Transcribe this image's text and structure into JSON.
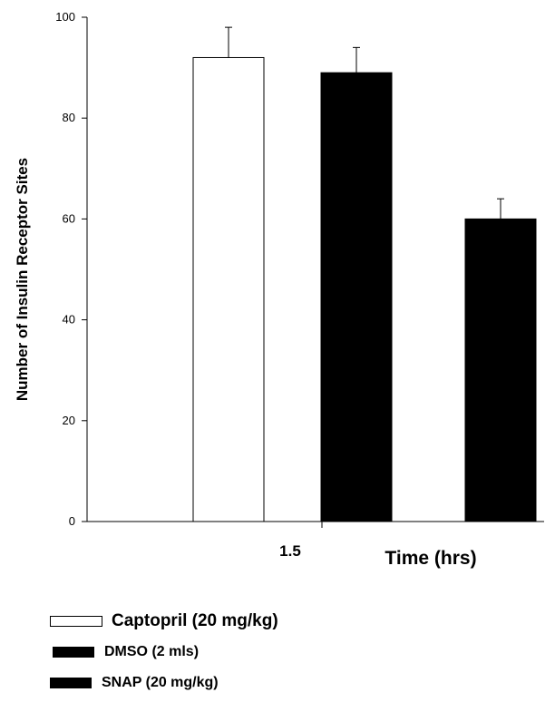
{
  "chart_data": {
    "type": "bar",
    "xlabel": "Time (hrs)",
    "ylabel": "Number of Insulin Receptor Sites",
    "ylim": [
      0,
      100
    ],
    "yticks": [
      0,
      20,
      40,
      60,
      80,
      100
    ],
    "categories": [
      "1.5"
    ],
    "grid": false,
    "legend_position": "bottom",
    "series": [
      {
        "name": "Captopril (20 mg/kg)",
        "fill": "#ffffff",
        "values": [
          92
        ],
        "errors": [
          6
        ]
      },
      {
        "name": "DMSO (2 mls)",
        "fill": "#000000",
        "values": [
          89
        ],
        "errors": [
          5
        ]
      },
      {
        "name": "SNAP (20 mg/kg)",
        "fill": "#000000",
        "values": [
          60
        ],
        "errors": [
          4
        ]
      }
    ]
  }
}
